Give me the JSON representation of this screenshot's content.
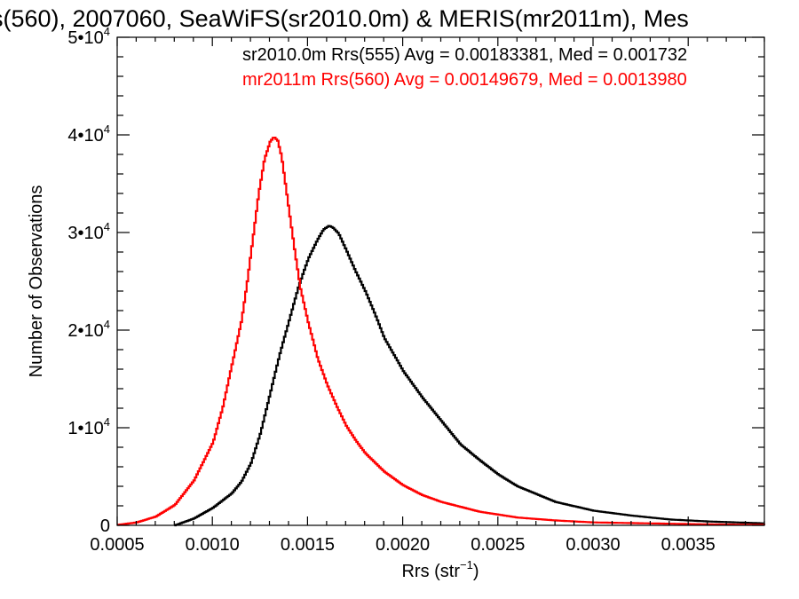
{
  "chart_data": {
    "type": "line",
    "title": "s(560), 2007060, SeaWiFS(sr2010.0m) & MERIS(mr2011m), Mes",
    "xlabel": "Rrs (str",
    "xlabel_sup": "−1",
    "xlabel_close": ")",
    "ylabel": "Number of Observations",
    "xlim": [
      0.0005,
      0.0039
    ],
    "ylim": [
      0,
      50000
    ],
    "grid": false,
    "legend_placement": "top-right",
    "x_ticks": [
      {
        "value": 0.0005,
        "label": "0.0005"
      },
      {
        "value": 0.001,
        "label": "0.0010"
      },
      {
        "value": 0.0015,
        "label": "0.0015"
      },
      {
        "value": 0.002,
        "label": "0.0020"
      },
      {
        "value": 0.0025,
        "label": "0.0025"
      },
      {
        "value": 0.003,
        "label": "0.0030"
      },
      {
        "value": 0.0035,
        "label": "0.0035"
      }
    ],
    "y_ticks": [
      {
        "value": 0,
        "mant": "0",
        "exp": ""
      },
      {
        "value": 10000,
        "mant": "1•10",
        "exp": "4"
      },
      {
        "value": 20000,
        "mant": "2•10",
        "exp": "4"
      },
      {
        "value": 30000,
        "mant": "3•10",
        "exp": "4"
      },
      {
        "value": 40000,
        "mant": "4•10",
        "exp": "4"
      },
      {
        "value": 50000,
        "mant": "5•10",
        "exp": "4"
      }
    ],
    "series": [
      {
        "name": "sr2010.0m Rrs(555) Avg = 0.00183381, Med = 0.001732",
        "color": "#000000",
        "x": [
          0.0008,
          0.0009,
          0.001,
          0.0011,
          0.00115,
          0.0012,
          0.00125,
          0.0013,
          0.00135,
          0.0014,
          0.00145,
          0.0015,
          0.00155,
          0.00158,
          0.00161,
          0.00163,
          0.00166,
          0.0017,
          0.00175,
          0.0018,
          0.00185,
          0.0019,
          0.002,
          0.0021,
          0.0022,
          0.0023,
          0.0024,
          0.0025,
          0.0026,
          0.0028,
          0.003,
          0.0032,
          0.0034,
          0.0036,
          0.0039
        ],
        "values": [
          0,
          700,
          1800,
          3300,
          4500,
          6400,
          9500,
          13500,
          17500,
          21000,
          24500,
          27300,
          29300,
          30300,
          30700,
          30500,
          29900,
          28200,
          26000,
          24000,
          21700,
          19200,
          15800,
          13100,
          10700,
          8300,
          6700,
          5200,
          4000,
          2400,
          1500,
          1000,
          600,
          400,
          200
        ]
      },
      {
        "name": "mr2011m Rrs(560) Avg = 0.00149679, Med = 0.0013980",
        "color": "#ff0000",
        "x": [
          0.0005,
          0.0006,
          0.0007,
          0.0008,
          0.0009,
          0.001,
          0.00105,
          0.0011,
          0.00115,
          0.00118,
          0.00121,
          0.00124,
          0.00127,
          0.0013,
          0.00132,
          0.00134,
          0.00136,
          0.00138,
          0.0014,
          0.00143,
          0.00146,
          0.0015,
          0.00155,
          0.0016,
          0.00165,
          0.0017,
          0.00175,
          0.0018,
          0.0019,
          0.002,
          0.0021,
          0.0022,
          0.0024,
          0.0026,
          0.0028,
          0.003,
          0.0033,
          0.0036,
          0.0039
        ],
        "values": [
          50,
          300,
          900,
          2100,
          4600,
          8500,
          12000,
          16500,
          21000,
          25000,
          29500,
          34000,
          37500,
          39300,
          39800,
          39400,
          37800,
          35000,
          32200,
          28000,
          24200,
          20800,
          17100,
          14400,
          12200,
          10200,
          8700,
          7400,
          5500,
          4100,
          3100,
          2400,
          1400,
          800,
          500,
          300,
          200,
          100,
          50
        ]
      }
    ]
  }
}
